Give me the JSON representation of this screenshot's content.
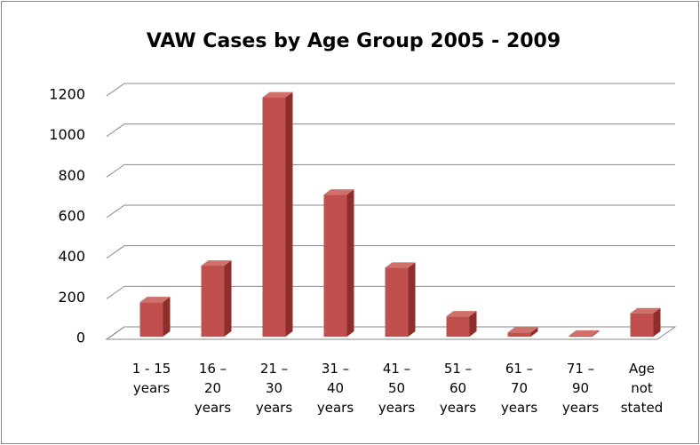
{
  "chart_data": {
    "type": "bar",
    "title": "VAW Cases by Age Group 2005 - 2009",
    "categories": [
      "1 - 15 years",
      "16 – 20 years",
      "21 – 30 years",
      "31 – 40 years",
      "41 – 50 years",
      "51 – 60 years",
      "61 – 70 years",
      "71 – 90 years",
      "Age not stated"
    ],
    "values": [
      170,
      350,
      1180,
      700,
      340,
      100,
      20,
      5,
      115
    ],
    "color": "#c0504d",
    "ylim": [
      0,
      1200
    ],
    "yticks": [
      0,
      200,
      400,
      600,
      800,
      1000,
      1200
    ],
    "grid": true
  }
}
